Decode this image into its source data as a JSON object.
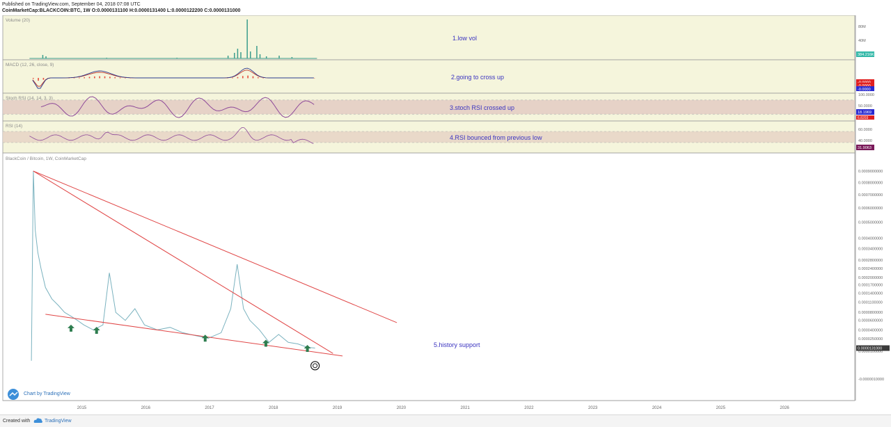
{
  "header": {
    "line1": "Published on TradingView.com, September 04, 2018 07:08 UTC",
    "line2": "CoinMarketCap:BLACKCOIN:BTC, 1W  O:0.0000131100 H:0.0000131400 L:0.0000122200 C:0.0000131000"
  },
  "footer": {
    "created_with": "Created with",
    "brand": "TradingView",
    "chart_by": "Chart by TradingView"
  },
  "colors": {
    "panel_bg": "#f5f5dc",
    "rsi_band": "#e6d4c6",
    "stoch_band": "#e3cbc3",
    "oscillator_line": "#8e4a9a",
    "volume": "#3b9c8c",
    "macd_line": "#2b3a8e",
    "signal_line": "#c0392b",
    "histogram": "#e74c3c",
    "trendline": "#e04545",
    "arrow": "#2e7d4f",
    "annotation_text": "#3a33c0",
    "price_line": "#7ab2bf"
  },
  "chart_data": {
    "type": "line",
    "symbol_label": "BlackCoin / Bitcoin, 1W, CoinMarketCap",
    "x_ticks": [
      "2015",
      "2016",
      "2017",
      "2018",
      "2019",
      "2020",
      "2021",
      "2022",
      "2023",
      "2024",
      "2025",
      "2026"
    ],
    "price_ticks": [
      {
        "label": "0.0009000000",
        "v": 0.0009
      },
      {
        "label": "0.0008000000",
        "v": 0.0008
      },
      {
        "label": "0.0007000000",
        "v": 0.0007
      },
      {
        "label": "0.0006000000",
        "v": 0.0006
      },
      {
        "label": "0.0005000000",
        "v": 0.0005
      },
      {
        "label": "0.0004000000",
        "v": 0.0004
      },
      {
        "label": "0.0003400000",
        "v": 0.00034
      },
      {
        "label": "0.0002800000",
        "v": 0.00028
      },
      {
        "label": "0.0002400000",
        "v": 0.00024
      },
      {
        "label": "0.0002000000",
        "v": 0.0002
      },
      {
        "label": "0.0001700000",
        "v": 0.00017
      },
      {
        "label": "0.0001400000",
        "v": 0.00014
      },
      {
        "label": "0.0001100000",
        "v": 0.00011
      },
      {
        "label": "0.0000800000",
        "v": 8e-05
      },
      {
        "label": "0.0000600000",
        "v": 6e-05
      },
      {
        "label": "0.0000400000",
        "v": 4e-05
      },
      {
        "label": "0.0000250000",
        "v": 2.5e-05
      },
      {
        "label": "0.0000100000",
        "v": 1e-05
      },
      {
        "label": "-0.0000010000",
        "v": -1e-06
      }
    ],
    "last_price_label": "0.0000131000",
    "price_series": {
      "name": "BlackCoin / Bitcoin",
      "x": [
        2014.23,
        2014.26,
        2014.29,
        2014.33,
        2014.38,
        2014.45,
        2014.55,
        2014.65,
        2014.75,
        2014.85,
        2014.95,
        2015.05,
        2015.2,
        2015.35,
        2015.45,
        2015.55,
        2015.7,
        2015.85,
        2016.0,
        2016.2,
        2016.4,
        2016.6,
        2016.8,
        2017.0,
        2017.2,
        2017.35,
        2017.45,
        2017.55,
        2017.65,
        2017.8,
        2017.95,
        2018.1,
        2018.25,
        2018.4,
        2018.55,
        2018.67
      ],
      "y": [
        3e-06,
        0.0009,
        0.00045,
        0.00032,
        0.00024,
        0.00016,
        0.00012,
        0.0001,
        8e-05,
        7e-05,
        6e-05,
        5e-05,
        4e-05,
        5e-05,
        0.00022,
        8e-05,
        6e-05,
        9e-05,
        5e-05,
        4e-05,
        4.5e-05,
        3.5e-05,
        3e-05,
        2.6e-05,
        3.5e-05,
        9e-05,
        0.00026,
        9e-05,
        6e-05,
        4e-05,
        2e-05,
        3.2e-05,
        2e-05,
        1.8e-05,
        1.4e-05,
        1.31e-05
      ]
    },
    "trendlines": [
      {
        "x1": 2014.26,
        "y1": 0.0009,
        "x2": 2018.95,
        "y2": 8e-06
      },
      {
        "x1": 2014.26,
        "y1": 0.0009,
        "x2": 2019.95,
        "y2": 5.5e-05
      },
      {
        "x1": 2014.45,
        "y1": 7.5e-05,
        "x2": 2019.1,
        "y2": 6e-06
      }
    ],
    "support_arrows": [
      {
        "x": 2014.85,
        "y": 4.2e-05
      },
      {
        "x": 2015.25,
        "y": 3.8e-05
      },
      {
        "x": 2016.95,
        "y": 2.5e-05
      },
      {
        "x": 2017.9,
        "y": 1.8e-05
      },
      {
        "x": 2018.55,
        "y": 1.2e-05
      }
    ],
    "panels": [
      {
        "id": "volume",
        "title": "Volume (20)",
        "note": "1.low vol",
        "axis_labels": [
          "80M",
          "40M"
        ],
        "last_label": "384.216K",
        "last_color": "#33b8a8"
      },
      {
        "id": "macd",
        "title": "MACD (12, 26, close, 9)",
        "note": "2.going to cross up",
        "axis_labels": [
          "-0.0000",
          "-0.0000",
          "-0.0000"
        ],
        "axis_colors": [
          "#e02020",
          "#e02020",
          "#2a2ad0"
        ]
      },
      {
        "id": "stoch",
        "title": "Stoch RSI (14, 14, 3, 3)",
        "note": "3.stoch RSI crossed up",
        "axis_labels": [
          "100.0000",
          "50.0000",
          "0.0000"
        ],
        "last_label": "18.1969",
        "last_color": "#2a2ad0",
        "last_label_2": "6.8203",
        "last_color_2": "#e02020",
        "band": [
          20,
          80
        ]
      },
      {
        "id": "rsi",
        "title": "RSI (14)",
        "note": "4.RSI bounced from previous low",
        "axis_labels": [
          "60.0000",
          "40.0000",
          "20.0000"
        ],
        "last_label": "31.9063",
        "last_color": "#7a1a5a",
        "band": [
          30,
          70
        ]
      }
    ],
    "main_note": "5.history support"
  }
}
